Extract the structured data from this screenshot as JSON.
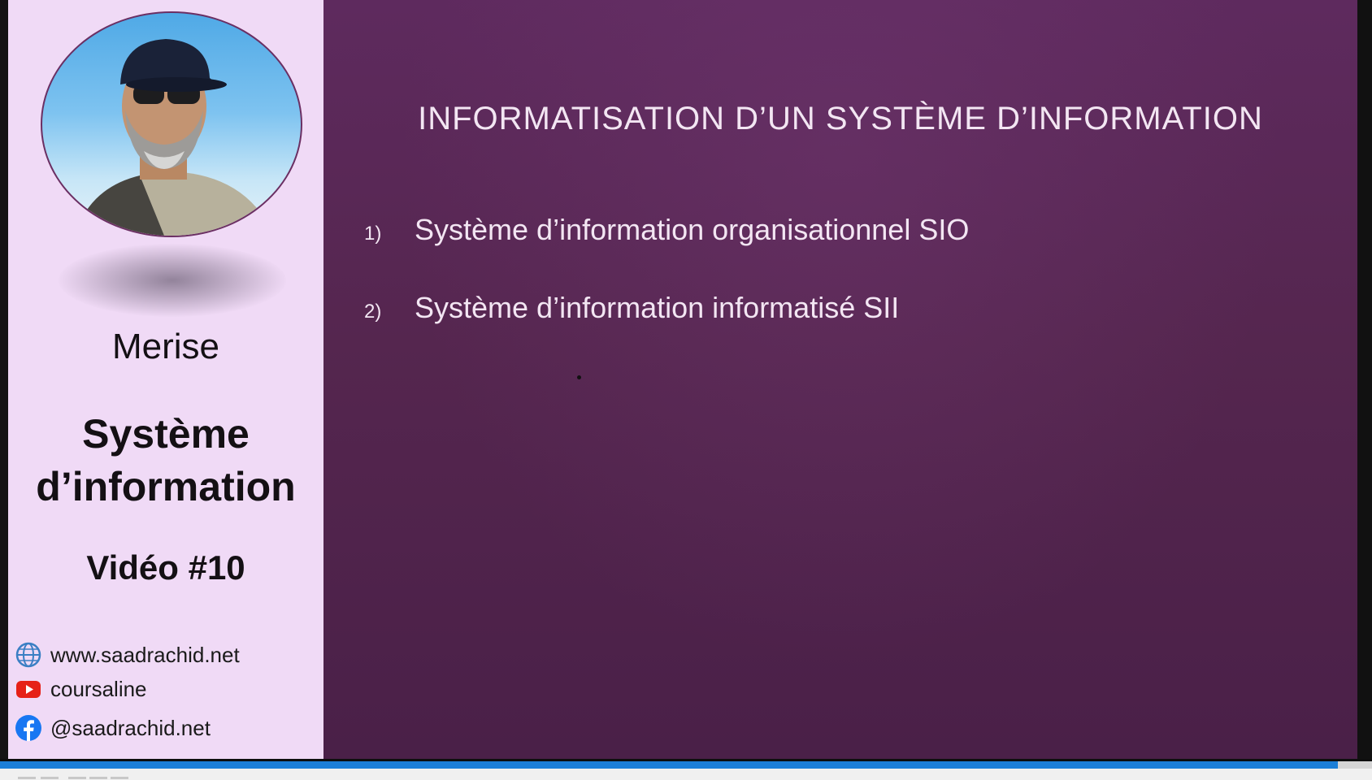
{
  "sidebar": {
    "course": "Merise",
    "title_line1": "Système",
    "title_line2": "d’information",
    "video": "Vidéo #10",
    "contacts": [
      {
        "icon": "globe-icon",
        "text": "www.saadrachid.net"
      },
      {
        "icon": "youtube-icon",
        "text": "coursaline"
      },
      {
        "icon": "facebook-icon",
        "text": "@saadrachid.net"
      }
    ]
  },
  "slide": {
    "title": "INFORMATISATION D’UN SYSTÈME D’INFORMATION",
    "items": [
      {
        "num": "1)",
        "text": "Système d’information organisationnel SIO"
      },
      {
        "num": "2)",
        "text": "Système d’information informatisé SII"
      }
    ]
  },
  "player": {
    "progress": 0.975
  },
  "colors": {
    "slide_bg": "#55264f",
    "sidebar_bg": "#f0daf6",
    "progress": "#1c7fd8"
  }
}
